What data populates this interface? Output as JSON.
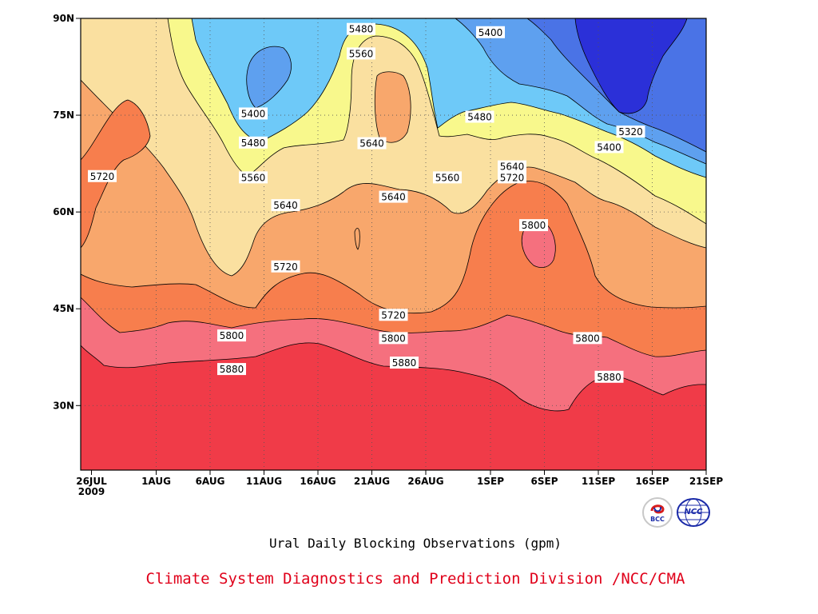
{
  "chart_data": {
    "type": "heatmap",
    "title": "Ural Daily Blocking Observations (gpm)",
    "x_tick_labels": [
      "26JUL",
      "1AUG",
      "6AUG",
      "11AUG",
      "16AUG",
      "21AUG",
      "26AUG",
      "1SEP",
      "6SEP",
      "11SEP",
      "16SEP",
      "21SEP"
    ],
    "x_year_label": "2009",
    "y_tick_labels": [
      "30N",
      "45N",
      "60N",
      "75N",
      "90N"
    ],
    "y_ticks": [
      30,
      45,
      60,
      75,
      90
    ],
    "ylim": [
      20,
      90
    ],
    "x_range": [
      "2009-07-25",
      "2009-09-21"
    ],
    "levels": [
      5320,
      5400,
      5480,
      5560,
      5640,
      5720,
      5800,
      5880
    ],
    "level_colors": [
      "#2b30d8",
      "#4a73e6",
      "#5ea0ef",
      "#6ec9f8",
      "#f8f88c",
      "#fae0a0",
      "#f8a76c",
      "#f77e4d",
      "#f5707e",
      "#f03b48"
    ],
    "contour_labels": [
      {
        "value": "5480",
        "date": "2009-08-20",
        "lat": 88.3
      },
      {
        "value": "5400",
        "date": "2009-09-01",
        "lat": 87.8
      },
      {
        "value": "5560",
        "date": "2009-08-20",
        "lat": 84.5
      },
      {
        "value": "5400",
        "date": "2009-08-10",
        "lat": 75.2
      },
      {
        "value": "5480",
        "date": "2009-08-31",
        "lat": 74.7
      },
      {
        "value": "5320",
        "date": "2009-09-14",
        "lat": 72.4
      },
      {
        "value": "5480",
        "date": "2009-08-10",
        "lat": 70.7
      },
      {
        "value": "5640",
        "date": "2009-08-21",
        "lat": 70.6
      },
      {
        "value": "5400",
        "date": "2009-09-12",
        "lat": 70.0
      },
      {
        "value": "5640",
        "date": "2009-09-03",
        "lat": 67.0
      },
      {
        "value": "5720",
        "date": "2009-07-27",
        "lat": 65.5
      },
      {
        "value": "5560",
        "date": "2009-08-10",
        "lat": 65.3
      },
      {
        "value": "5560",
        "date": "2009-08-28",
        "lat": 65.3
      },
      {
        "value": "5720",
        "date": "2009-09-03",
        "lat": 65.3
      },
      {
        "value": "5640",
        "date": "2009-08-23",
        "lat": 62.3
      },
      {
        "value": "5640",
        "date": "2009-08-13",
        "lat": 61.0
      },
      {
        "value": "5800",
        "date": "2009-09-05",
        "lat": 57.9
      },
      {
        "value": "5720",
        "date": "2009-08-13",
        "lat": 51.5
      },
      {
        "value": "5720",
        "date": "2009-08-23",
        "lat": 44.0
      },
      {
        "value": "5800",
        "date": "2009-08-08",
        "lat": 40.8
      },
      {
        "value": "5800",
        "date": "2009-08-23",
        "lat": 40.4
      },
      {
        "value": "5800",
        "date": "2009-09-10",
        "lat": 40.4
      },
      {
        "value": "5880",
        "date": "2009-08-24",
        "lat": 36.6
      },
      {
        "value": "5880",
        "date": "2009-08-08",
        "lat": 35.6
      },
      {
        "value": "5880",
        "date": "2009-09-12",
        "lat": 34.4
      }
    ]
  },
  "footer": {
    "title": "Ural Daily Blocking Observations (gpm)",
    "credit": "Climate System Diagnostics and Prediction Division /NCC/CMA",
    "logos": [
      {
        "name": "bcc-logo",
        "text": "BCC"
      },
      {
        "name": "ncc-logo",
        "text": "NCC"
      }
    ]
  }
}
